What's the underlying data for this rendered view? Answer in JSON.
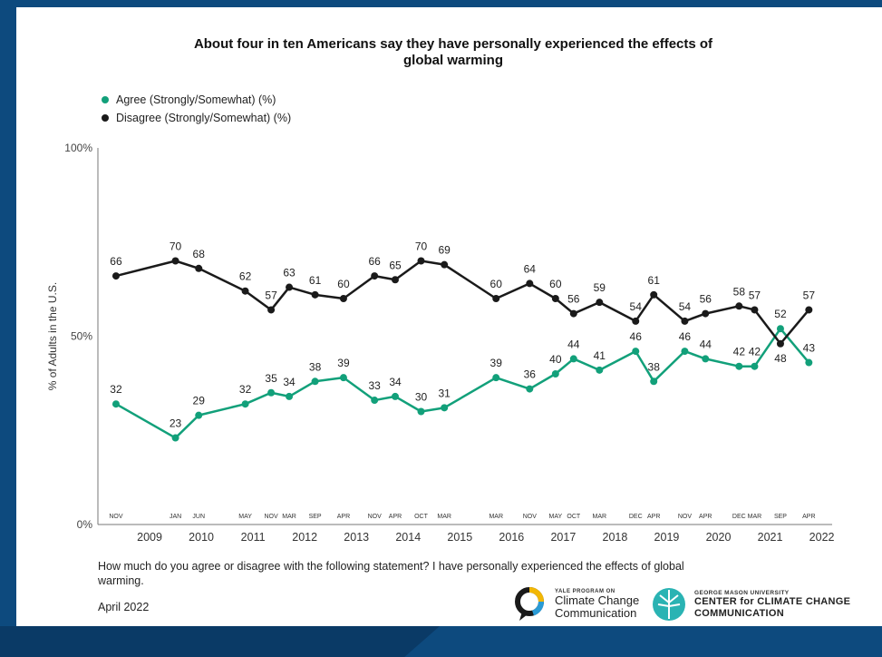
{
  "title": "About four in ten Americans say they have personally experienced the effects of global warming",
  "legend": {
    "agree_label": "Agree (Strongly/Somewhat) (%)",
    "disagree_label": "Disagree (Strongly/Somewhat) (%)"
  },
  "colors": {
    "agree": "#12a07a",
    "disagree": "#1a1a1a",
    "background": "#0d4a7e"
  },
  "question": "How much do you agree or disagree with the following statement? I have personally experienced the effects of global warming.",
  "date": "April 2022",
  "logos": {
    "yale_small": "YALE PROGRAM ON",
    "yale_line1": "Climate Change",
    "yale_line2": "Communication",
    "gmu_small": "GEORGE MASON UNIVERSITY",
    "gmu_line1": "CENTER for CLIMATE CHANGE",
    "gmu_line2": "COMMUNICATION"
  },
  "chart_data": {
    "type": "line",
    "ylabel": "% of Adults in the U.S.",
    "ylim": [
      0,
      100
    ],
    "yticks": [
      "0%",
      "50%",
      "100%"
    ],
    "year_labels": [
      "2009",
      "2010",
      "2011",
      "2012",
      "2013",
      "2014",
      "2015",
      "2016",
      "2017",
      "2018",
      "2019",
      "2020",
      "2021",
      "2022"
    ],
    "x": [
      2008.85,
      2010.0,
      2010.45,
      2011.35,
      2011.85,
      2012.2,
      2012.7,
      2013.25,
      2013.85,
      2014.25,
      2014.75,
      2015.2,
      2016.2,
      2016.85,
      2017.35,
      2017.7,
      2018.2,
      2018.9,
      2019.25,
      2019.85,
      2020.25,
      2020.9,
      2021.2,
      2021.7,
      2022.25
    ],
    "month_labels": [
      "NOV",
      "JAN",
      "JUN",
      "MAY",
      "NOV",
      "MAR",
      "SEP",
      "APR",
      "NOV",
      "APR",
      "OCT",
      "MAR",
      "MAR",
      "NOV",
      "MAY",
      "OCT",
      "MAR",
      "DEC",
      "APR",
      "NOV",
      "APR",
      "DEC",
      "MAR",
      "SEP",
      "APR"
    ],
    "series": [
      {
        "name": "Agree (Strongly/Somewhat) (%)",
        "values": [
          32,
          23,
          29,
          32,
          35,
          34,
          38,
          39,
          33,
          34,
          30,
          31,
          39,
          36,
          40,
          44,
          41,
          46,
          38,
          46,
          44,
          42,
          42,
          52,
          43
        ]
      },
      {
        "name": "Disagree (Strongly/Somewhat) (%)",
        "values": [
          66,
          70,
          68,
          62,
          57,
          63,
          61,
          60,
          66,
          65,
          70,
          69,
          60,
          64,
          60,
          56,
          59,
          54,
          61,
          54,
          56,
          58,
          57,
          48,
          57
        ]
      }
    ]
  }
}
